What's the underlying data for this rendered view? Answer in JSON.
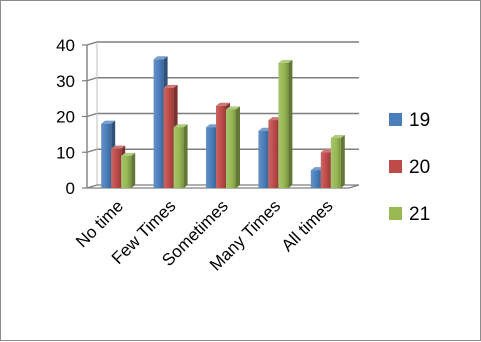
{
  "chart_data": {
    "type": "bar",
    "style": "3d-clustered-column",
    "categories": [
      "No time",
      "Few Times",
      "Sometimes",
      "Many Times",
      "All times"
    ],
    "series": [
      {
        "name": "19",
        "color": "#4a7ebb",
        "values": [
          18,
          36,
          17,
          16,
          5
        ]
      },
      {
        "name": "20",
        "color": "#be4b48",
        "values": [
          11,
          28,
          23,
          19,
          10
        ]
      },
      {
        "name": "21",
        "color": "#98b954",
        "values": [
          9,
          17,
          22,
          35,
          14
        ]
      }
    ],
    "yticks": [
      "0",
      "10",
      "20",
      "30",
      "40"
    ],
    "ylim": [
      0,
      40
    ],
    "grid": true,
    "legend_position": "right"
  }
}
